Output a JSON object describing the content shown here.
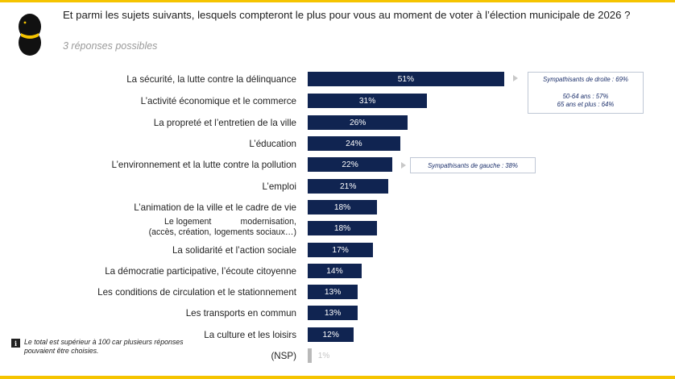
{
  "question": "Et parmi les sujets suivants, lesquels compteront le plus pour vous au moment de voter à l’élection municipale de 2026 ?",
  "subtitle": "3 réponses possibles",
  "chart_data": {
    "type": "bar",
    "orientation": "horizontal",
    "categories": [
      "La sécurité, la lutte contre la délinquance",
      "L’activité économique et le commerce",
      "La propreté et l’entretien de la ville",
      "L’éducation",
      "L’environnement et la lutte contre la pollution",
      "L’emploi",
      "L’animation de la ville et le cadre de vie",
      "Le logement (accès, création, modernisation, logements sociaux…)",
      "La solidarité et l’action sociale",
      "La démocratie participative, l’écoute citoyenne",
      "Les conditions de circulation et le stationnement",
      "Les transports en commun",
      "La culture et les loisirs",
      "(NSP)"
    ],
    "values": [
      51,
      31,
      26,
      24,
      22,
      21,
      18,
      18,
      17,
      14,
      13,
      13,
      12,
      1
    ],
    "value_labels": [
      "51%",
      "31%",
      "26%",
      "24%",
      "22%",
      "21%",
      "18%",
      "18%",
      "17%",
      "14%",
      "13%",
      "13%",
      "12%",
      "1%"
    ],
    "unit": "%",
    "colors": {
      "bar": "#102451",
      "nsp_bar": "#b9b9b9",
      "accent": "#f5c400"
    }
  },
  "labels": {
    "logement_line1": "Le logement (accès, création,",
    "logement_line2": "modernisation, logements sociaux…)"
  },
  "callouts": {
    "securite": {
      "line1": "Sympathisants de droite : 69%",
      "line2": "50-64 ans : 57%",
      "line3": "65 ans et plus : 64%"
    },
    "environnement": {
      "line1": "Sympathisants de gauche : 38%"
    }
  },
  "note": {
    "icon": "info-icon",
    "text": "Le total est supérieur à 100 car plusieurs réponses pouvaient être choisies."
  }
}
